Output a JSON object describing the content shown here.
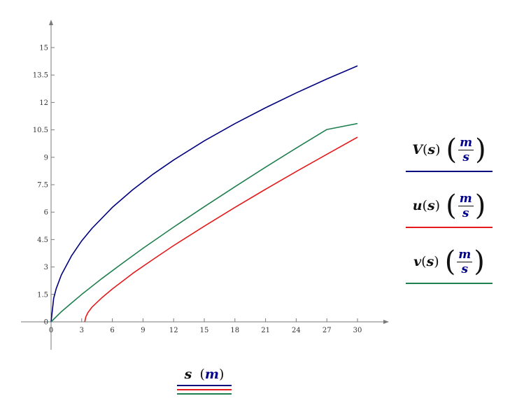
{
  "chart_data": {
    "type": "line",
    "xlabel": {
      "var": "s",
      "unit": "m"
    },
    "xlim": [
      0,
      30
    ],
    "ylim": [
      0,
      15
    ],
    "x_ticks": [
      0,
      3,
      6,
      9,
      12,
      15,
      18,
      21,
      24,
      27,
      30
    ],
    "x_tick_labels": [
      "0",
      "3",
      "6",
      "9",
      "12",
      "15",
      "18",
      "21",
      "24",
      "27",
      "30"
    ],
    "y_ticks": [
      0,
      1.5,
      3,
      4.5,
      6,
      7.5,
      9,
      10.5,
      12,
      13.5,
      15
    ],
    "y_tick_labels": [
      "0",
      "1.5",
      "3",
      "4.5",
      "6",
      "7.5",
      "9",
      "10.5",
      "12",
      "13.5",
      "15"
    ],
    "grid": false,
    "legend_position": "right",
    "series": [
      {
        "name": "V",
        "label_var": "V",
        "label_arg": "s",
        "unit_num": "m",
        "unit_den": "s",
        "color": "#00007f",
        "x": [
          0,
          0.25,
          0.5,
          1,
          2,
          3,
          4,
          6,
          8,
          10,
          12,
          15,
          18,
          21,
          24,
          27,
          30
        ],
        "y": [
          0,
          1.28,
          1.81,
          2.56,
          3.61,
          4.43,
          5.11,
          6.26,
          7.23,
          8.08,
          8.85,
          9.9,
          10.84,
          11.71,
          12.52,
          13.28,
          14.0
        ]
      },
      {
        "name": "u",
        "label_var": "u",
        "label_arg": "s",
        "unit_num": "m",
        "unit_den": "s",
        "color": "#e41a1a",
        "x": [
          3.3,
          3.4,
          3.6,
          4,
          5,
          6,
          8,
          10,
          12,
          15,
          18,
          21,
          24,
          27,
          30
        ],
        "y": [
          0,
          0.26,
          0.5,
          0.8,
          1.33,
          1.8,
          2.65,
          3.42,
          4.17,
          5.23,
          6.26,
          7.25,
          8.22,
          9.16,
          10.1
        ]
      },
      {
        "name": "v",
        "label_var": "v",
        "label_arg": "s",
        "unit_num": "m",
        "unit_den": "s",
        "color": "#1f7f4f",
        "x": [
          0,
          1,
          2,
          3,
          5,
          7,
          9,
          12,
          15,
          18,
          21,
          24,
          27,
          30
        ],
        "y": [
          0,
          0.55,
          1.03,
          1.5,
          2.38,
          3.21,
          4.02,
          5.18,
          6.3,
          7.39,
          8.46,
          9.5,
          10.52,
          10.85
        ]
      }
    ]
  }
}
